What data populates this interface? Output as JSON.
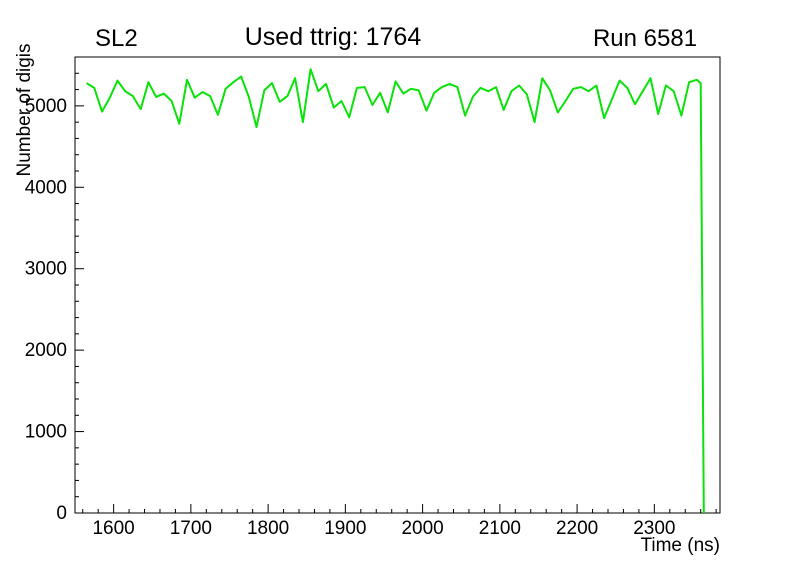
{
  "header": {
    "left": "SL2",
    "center": "Used ttrig: 1764",
    "right": "Run 6581"
  },
  "chart_data": {
    "type": "line",
    "title": "Used ttrig: 1764",
    "subtitle_left": "SL2",
    "subtitle_right": "Run 6581",
    "xlabel": "Time (ns)",
    "ylabel": "Number of digis",
    "xlim": [
      1550,
      2385
    ],
    "ylim": [
      0,
      5600
    ],
    "x_major_ticks": [
      1600,
      1700,
      1800,
      1900,
      2000,
      2100,
      2200,
      2300
    ],
    "y_major_ticks": [
      0,
      1000,
      2000,
      3000,
      4000,
      5000
    ],
    "x_minor_step": 20,
    "y_minor_step": 200,
    "grid": false,
    "legend": "none",
    "line_color": "#0ae20a",
    "line_width": 2,
    "series": [
      {
        "name": "number-of-digis-vs-time",
        "x": [
          1565,
          1575,
          1585,
          1595,
          1605,
          1615,
          1625,
          1635,
          1645,
          1655,
          1665,
          1675,
          1685,
          1695,
          1705,
          1715,
          1725,
          1735,
          1745,
          1755,
          1765,
          1775,
          1785,
          1795,
          1805,
          1815,
          1825,
          1835,
          1845,
          1855,
          1865,
          1875,
          1885,
          1895,
          1905,
          1915,
          1925,
          1935,
          1945,
          1955,
          1965,
          1975,
          1985,
          1995,
          2005,
          2015,
          2025,
          2035,
          2045,
          2055,
          2065,
          2075,
          2085,
          2095,
          2105,
          2115,
          2125,
          2135,
          2145,
          2155,
          2165,
          2175,
          2185,
          2195,
          2205,
          2215,
          2225,
          2235,
          2245,
          2255,
          2265,
          2275,
          2285,
          2295,
          2305,
          2315,
          2325,
          2335,
          2345,
          2355,
          2360,
          2364
        ],
        "values": [
          5280,
          5220,
          4930,
          5100,
          5310,
          5180,
          5120,
          4960,
          5290,
          5110,
          5150,
          5060,
          4780,
          5320,
          5100,
          5170,
          5120,
          4890,
          5210,
          5290,
          5360,
          5110,
          4740,
          5190,
          5280,
          5050,
          5120,
          5340,
          4800,
          5450,
          5180,
          5270,
          4980,
          5060,
          4860,
          5220,
          5230,
          5010,
          5160,
          4920,
          5300,
          5150,
          5210,
          5190,
          4940,
          5160,
          5230,
          5270,
          5230,
          4880,
          5110,
          5220,
          5180,
          5230,
          4950,
          5180,
          5250,
          5140,
          4800,
          5340,
          5190,
          4920,
          5060,
          5210,
          5230,
          5180,
          5250,
          4850,
          5080,
          5310,
          5220,
          5020,
          5180,
          5340,
          4900,
          5250,
          5180,
          4880,
          5290,
          5320,
          5280,
          0
        ]
      }
    ]
  }
}
